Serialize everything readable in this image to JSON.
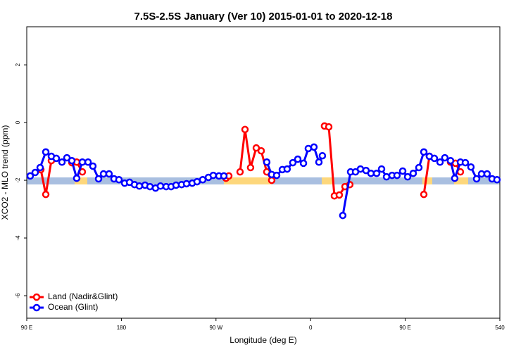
{
  "chart_data": {
    "type": "line",
    "title": "7.5S-2.5S January (Ver 10)   2015-01-01 to 2020-12-18",
    "x_label": "Longitude (deg E)",
    "y_label": "XCO2 - MLO trend (ppm)",
    "xlim": [
      90,
      540
    ],
    "xticks": [
      {
        "value": 90,
        "label": "90 E"
      },
      180,
      {
        "value": 270,
        "label": "90 W"
      },
      {
        "value": 360,
        "label": "0"
      },
      {
        "value": 450,
        "label": "90 E"
      },
      540
    ],
    "ylim": [
      -6.78,
      3.32
    ],
    "yticks": [
      2,
      0,
      -2,
      -4,
      -6
    ],
    "legend": "bottom-left",
    "series": [
      {
        "name": "Land (Nadir&Glint)",
        "color": "#ff0000",
        "x": [
          103.4,
          108.1,
          113.4,
          null,
          132.9,
          137.5,
          142.9,
          null,
          279.5,
          282.2,
          null,
          292.9,
          297.6,
          302.9,
          308.3,
          313.0,
          318.3,
          323.0,
          null,
          373.2,
          377.3,
          382.6,
          387.3,
          392.7,
          397.3,
          null,
          467.7,
          473.0,
          null,
          493.1,
          497.8,
          502.5
        ],
        "values": [
          -1.63,
          -2.49,
          -1.32,
          null,
          -1.39,
          -1.37,
          -1.71,
          null,
          -1.93,
          -1.85,
          null,
          -1.71,
          -0.24,
          -1.56,
          -0.88,
          -0.98,
          -1.71,
          -2.0,
          null,
          -0.12,
          -0.15,
          -2.54,
          -2.51,
          -2.22,
          -2.15,
          null,
          -2.49,
          -1.17,
          null,
          -1.37,
          -1.41,
          -1.71
        ]
      },
      {
        "name": "Ocean (Glint)",
        "color": "#0000ff",
        "x": [
          93.3,
          98.0,
          102.7,
          108.1,
          113.4,
          118.1,
          123.5,
          128.2,
          132.9,
          137.5,
          142.9,
          148.3,
          152.9,
          158.3,
          163.0,
          168.3,
          173.0,
          177.7,
          183.1,
          187.8,
          192.5,
          197.1,
          202.5,
          207.2,
          212.5,
          217.2,
          222.6,
          227.3,
          232.0,
          237.3,
          242.0,
          247.4,
          252.0,
          257.4,
          262.8,
          267.4,
          272.8,
          277.5,
          null,
          318.3,
          323.0,
          327.7,
          333.1,
          337.7,
          343.1,
          347.8,
          353.2,
          357.8,
          363.2,
          367.9,
          371.2,
          null,
          390.6,
          398.0,
          402.7,
          407.4,
          412.7,
          417.4,
          422.8,
          427.5,
          432.2,
          437.5,
          442.2,
          447.6,
          452.3,
          457.6,
          463.0,
          467.7,
          473.0,
          477.7,
          483.1,
          487.7,
          493.1,
          497.1,
          502.5,
          507.2,
          512.5,
          517.9,
          522.6,
          527.9,
          532.6,
          537.3
        ],
        "values": [
          -1.85,
          -1.73,
          -1.56,
          -1.02,
          -1.17,
          -1.24,
          -1.37,
          -1.22,
          -1.32,
          -1.93,
          -1.37,
          -1.37,
          -1.51,
          -1.95,
          -1.78,
          -1.78,
          -1.95,
          -1.98,
          -2.1,
          -2.07,
          -2.15,
          -2.2,
          -2.17,
          -2.22,
          -2.27,
          -2.2,
          -2.22,
          -2.22,
          -2.17,
          -2.15,
          -2.12,
          -2.1,
          -2.05,
          -1.98,
          -1.9,
          -1.83,
          -1.85,
          -1.85,
          null,
          -1.37,
          -1.8,
          -1.83,
          -1.63,
          -1.61,
          -1.39,
          -1.27,
          -1.41,
          -0.9,
          -0.85,
          -1.37,
          -1.15,
          null,
          -3.22,
          -1.71,
          -1.71,
          -1.61,
          -1.66,
          -1.76,
          -1.76,
          -1.61,
          -1.88,
          -1.83,
          -1.83,
          -1.68,
          -1.88,
          -1.76,
          -1.56,
          -1.02,
          -1.17,
          -1.24,
          -1.37,
          -1.22,
          -1.32,
          -1.93,
          -1.37,
          -1.39,
          -1.54,
          -1.95,
          -1.78,
          -1.78,
          -1.95,
          -1.98
        ]
      }
    ]
  }
}
